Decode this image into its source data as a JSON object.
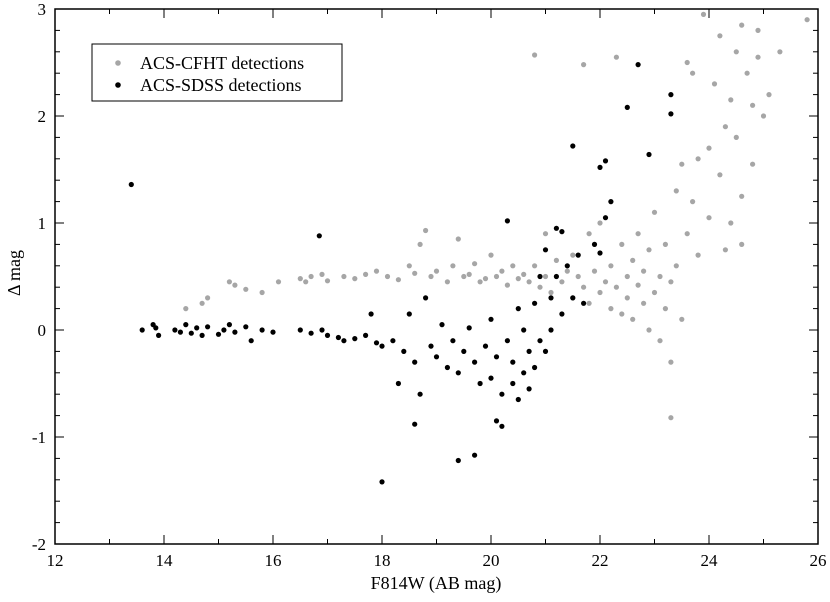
{
  "chart_data": {
    "type": "scatter",
    "xlabel": "F814W (AB mag)",
    "ylabel": "Δ mag",
    "xlim": [
      12,
      26
    ],
    "ylim": [
      -2,
      3
    ],
    "xticks": [
      12,
      14,
      16,
      18,
      20,
      22,
      24,
      26
    ],
    "xtick_labels": [
      "12",
      "14",
      "16",
      "18",
      "20",
      "22",
      "24",
      "26"
    ],
    "yticks": [
      -2,
      -1,
      0,
      1,
      2,
      3
    ],
    "ytick_labels": [
      "-2",
      "-1",
      "0",
      "1",
      "2",
      "3"
    ],
    "grid": false,
    "legend_position": "top-left",
    "series": [
      {
        "name": "ACS-CFHT detections",
        "color": "#a6a6a6",
        "points": [
          [
            14.4,
            0.2
          ],
          [
            14.7,
            0.25
          ],
          [
            14.8,
            0.3
          ],
          [
            15.2,
            0.45
          ],
          [
            15.3,
            0.42
          ],
          [
            15.5,
            0.38
          ],
          [
            15.8,
            0.35
          ],
          [
            16.1,
            0.45
          ],
          [
            16.5,
            0.48
          ],
          [
            16.6,
            0.45
          ],
          [
            16.7,
            0.5
          ],
          [
            16.9,
            0.52
          ],
          [
            17.0,
            0.46
          ],
          [
            17.3,
            0.5
          ],
          [
            17.5,
            0.48
          ],
          [
            17.7,
            0.52
          ],
          [
            17.9,
            0.55
          ],
          [
            18.1,
            0.5
          ],
          [
            18.3,
            0.47
          ],
          [
            18.5,
            0.6
          ],
          [
            18.6,
            0.53
          ],
          [
            18.7,
            0.8
          ],
          [
            18.8,
            0.93
          ],
          [
            18.9,
            0.5
          ],
          [
            19.0,
            0.55
          ],
          [
            19.2,
            0.45
          ],
          [
            19.3,
            0.6
          ],
          [
            19.4,
            0.85
          ],
          [
            19.5,
            0.5
          ],
          [
            19.6,
            0.52
          ],
          [
            19.7,
            0.62
          ],
          [
            19.8,
            0.45
          ],
          [
            19.9,
            0.48
          ],
          [
            20.0,
            0.7
          ],
          [
            20.1,
            0.5
          ],
          [
            20.2,
            0.55
          ],
          [
            20.3,
            0.42
          ],
          [
            20.4,
            0.6
          ],
          [
            20.5,
            0.48
          ],
          [
            20.6,
            0.52
          ],
          [
            20.7,
            0.45
          ],
          [
            20.8,
            2.57
          ],
          [
            20.8,
            0.6
          ],
          [
            20.9,
            0.4
          ],
          [
            21.0,
            0.9
          ],
          [
            21.0,
            0.5
          ],
          [
            21.1,
            0.35
          ],
          [
            21.2,
            0.65
          ],
          [
            21.3,
            0.45
          ],
          [
            21.4,
            0.55
          ],
          [
            21.5,
            0.3
          ],
          [
            21.5,
            0.7
          ],
          [
            21.6,
            0.5
          ],
          [
            21.7,
            2.48
          ],
          [
            21.7,
            0.4
          ],
          [
            21.8,
            0.9
          ],
          [
            21.8,
            0.25
          ],
          [
            21.9,
            0.55
          ],
          [
            22.0,
            0.35
          ],
          [
            22.0,
            1.0
          ],
          [
            22.1,
            0.45
          ],
          [
            22.2,
            0.2
          ],
          [
            22.2,
            0.6
          ],
          [
            22.3,
            2.55
          ],
          [
            22.3,
            0.4
          ],
          [
            22.4,
            0.8
          ],
          [
            22.4,
            0.15
          ],
          [
            22.5,
            0.5
          ],
          [
            22.5,
            0.3
          ],
          [
            22.6,
            0.65
          ],
          [
            22.6,
            0.1
          ],
          [
            22.7,
            0.42
          ],
          [
            22.7,
            0.9
          ],
          [
            22.8,
            0.25
          ],
          [
            22.8,
            0.55
          ],
          [
            22.9,
            0.0
          ],
          [
            22.9,
            0.75
          ],
          [
            23.0,
            0.35
          ],
          [
            23.0,
            1.1
          ],
          [
            23.1,
            0.5
          ],
          [
            23.1,
            -0.1
          ],
          [
            23.2,
            0.2
          ],
          [
            23.2,
            0.8
          ],
          [
            23.3,
            0.45
          ],
          [
            23.3,
            -0.82
          ],
          [
            23.3,
            -0.3
          ],
          [
            23.4,
            1.3
          ],
          [
            23.4,
            0.6
          ],
          [
            23.5,
            1.55
          ],
          [
            23.5,
            0.1
          ],
          [
            23.6,
            2.5
          ],
          [
            23.6,
            0.9
          ],
          [
            23.7,
            2.4
          ],
          [
            23.7,
            1.2
          ],
          [
            23.8,
            0.7
          ],
          [
            23.9,
            2.95
          ],
          [
            24.0,
            1.7
          ],
          [
            24.0,
            1.05
          ],
          [
            24.1,
            2.3
          ],
          [
            24.2,
            2.75
          ],
          [
            24.2,
            1.45
          ],
          [
            24.3,
            0.75
          ],
          [
            24.4,
            2.15
          ],
          [
            24.4,
            1.0
          ],
          [
            24.5,
            2.6
          ],
          [
            24.5,
            1.8
          ],
          [
            24.6,
            2.85
          ],
          [
            24.6,
            1.25
          ],
          [
            24.7,
            2.4
          ],
          [
            24.8,
            2.1
          ],
          [
            24.8,
            1.55
          ],
          [
            24.9,
            2.55
          ],
          [
            24.9,
            2.8
          ],
          [
            25.0,
            2.0
          ],
          [
            25.1,
            2.2
          ],
          [
            25.3,
            2.6
          ],
          [
            25.8,
            2.9
          ],
          [
            24.6,
            0.8
          ],
          [
            24.3,
            1.9
          ],
          [
            23.8,
            1.6
          ]
        ]
      },
      {
        "name": "ACS-SDSS detections",
        "color": "#000000",
        "points": [
          [
            13.4,
            1.36
          ],
          [
            13.6,
            0.0
          ],
          [
            13.8,
            0.05
          ],
          [
            13.85,
            0.02
          ],
          [
            13.9,
            -0.05
          ],
          [
            14.2,
            0.0
          ],
          [
            14.3,
            -0.02
          ],
          [
            14.4,
            0.05
          ],
          [
            14.5,
            -0.03
          ],
          [
            14.6,
            0.02
          ],
          [
            14.7,
            -0.05
          ],
          [
            14.8,
            0.03
          ],
          [
            15.0,
            -0.04
          ],
          [
            15.1,
            0.0
          ],
          [
            15.2,
            0.05
          ],
          [
            15.3,
            -0.02
          ],
          [
            15.5,
            0.03
          ],
          [
            15.6,
            -0.1
          ],
          [
            15.8,
            0.0
          ],
          [
            16.0,
            -0.02
          ],
          [
            16.5,
            0.0
          ],
          [
            16.7,
            -0.03
          ],
          [
            16.85,
            0.88
          ],
          [
            16.9,
            0.0
          ],
          [
            17.0,
            -0.05
          ],
          [
            17.2,
            -0.07
          ],
          [
            17.3,
            -0.1
          ],
          [
            17.5,
            -0.08
          ],
          [
            17.7,
            -0.05
          ],
          [
            17.8,
            0.15
          ],
          [
            17.9,
            -0.12
          ],
          [
            18.0,
            -1.42
          ],
          [
            18.0,
            -0.15
          ],
          [
            18.2,
            -0.1
          ],
          [
            18.3,
            -0.5
          ],
          [
            18.4,
            -0.2
          ],
          [
            18.5,
            0.15
          ],
          [
            18.6,
            -0.88
          ],
          [
            18.6,
            -0.3
          ],
          [
            18.7,
            -0.6
          ],
          [
            18.8,
            0.3
          ],
          [
            18.9,
            -0.15
          ],
          [
            19.0,
            -0.25
          ],
          [
            19.1,
            0.05
          ],
          [
            19.2,
            -0.35
          ],
          [
            19.3,
            -0.1
          ],
          [
            19.4,
            -1.22
          ],
          [
            19.4,
            -0.4
          ],
          [
            19.5,
            -0.2
          ],
          [
            19.6,
            0.02
          ],
          [
            19.7,
            -1.17
          ],
          [
            19.7,
            -0.3
          ],
          [
            19.8,
            -0.5
          ],
          [
            19.9,
            -0.15
          ],
          [
            20.0,
            -0.45
          ],
          [
            20.0,
            0.1
          ],
          [
            20.1,
            -0.25
          ],
          [
            20.1,
            -0.85
          ],
          [
            20.2,
            -0.6
          ],
          [
            20.2,
            -0.9
          ],
          [
            20.3,
            1.02
          ],
          [
            20.3,
            -0.1
          ],
          [
            20.4,
            -0.5
          ],
          [
            20.4,
            -0.3
          ],
          [
            20.5,
            -0.65
          ],
          [
            20.5,
            0.2
          ],
          [
            20.6,
            -0.4
          ],
          [
            20.6,
            0.0
          ],
          [
            20.7,
            -0.55
          ],
          [
            20.7,
            -0.2
          ],
          [
            20.8,
            0.25
          ],
          [
            20.8,
            -0.35
          ],
          [
            20.9,
            0.5
          ],
          [
            20.9,
            -0.1
          ],
          [
            21.0,
            0.75
          ],
          [
            21.0,
            -0.2
          ],
          [
            21.1,
            0.3
          ],
          [
            21.1,
            0.0
          ],
          [
            21.2,
            0.95
          ],
          [
            21.2,
            0.5
          ],
          [
            21.3,
            0.15
          ],
          [
            21.3,
            0.92
          ],
          [
            21.4,
            0.6
          ],
          [
            21.5,
            1.72
          ],
          [
            21.5,
            0.3
          ],
          [
            21.6,
            0.7
          ],
          [
            21.7,
            0.25
          ],
          [
            21.9,
            0.8
          ],
          [
            22.0,
            1.52
          ],
          [
            22.0,
            0.72
          ],
          [
            22.1,
            1.58
          ],
          [
            22.1,
            1.05
          ],
          [
            22.2,
            1.2
          ],
          [
            22.5,
            2.08
          ],
          [
            22.7,
            2.48
          ],
          [
            22.9,
            1.64
          ],
          [
            23.3,
            2.2
          ],
          [
            23.3,
            2.02
          ]
        ]
      }
    ]
  }
}
